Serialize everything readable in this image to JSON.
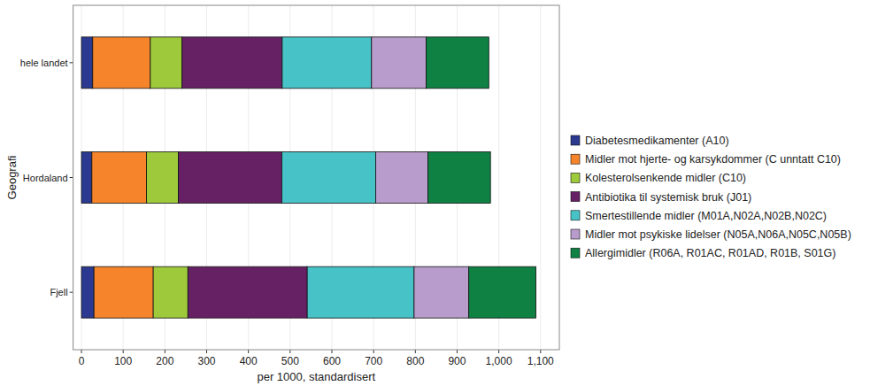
{
  "chart_data": {
    "type": "bar",
    "orientation": "horizontal",
    "stacked": true,
    "grid": true,
    "legend": "right",
    "x_label": "per 1000, standardisert",
    "y_label": "Geografi",
    "categories": [
      "hele landet",
      "Hordaland",
      "Fjell"
    ],
    "xlim": [
      -20,
      1145
    ],
    "xticks": [
      0,
      100,
      200,
      300,
      400,
      500,
      600,
      700,
      800,
      900,
      {
        "value": 1000,
        "label": "1,000"
      },
      {
        "value": 1100,
        "label": "1,100"
      }
    ],
    "series": [
      {
        "name": "Diabetesmedikamenter (A10)",
        "color": "#2b3990",
        "values": [
          27,
          25,
          30
        ]
      },
      {
        "name": "Midler mot hjerte- og karsykdommer (C unntatt C10)",
        "color": "#f5842a",
        "values": [
          138,
          131,
          142
        ]
      },
      {
        "name": "Kolesterolsenkende midler (C10)",
        "color": "#9dc93b",
        "values": [
          76,
          76,
          83
        ]
      },
      {
        "name": "Antibiotika til systemisk bruk (J01)",
        "color": "#662165",
        "values": [
          240,
          248,
          286
        ]
      },
      {
        "name": "Smertestillende midler (M01A,N02A,N02B,N02C)",
        "color": "#47c3c8",
        "values": [
          214,
          225,
          256
        ]
      },
      {
        "name": "Midler mot psykiske lidelser (N05A,N06A,N05C,N05B)",
        "color": "#b89ccb",
        "values": [
          131,
          125,
          131
        ]
      },
      {
        "name": "Allergimidler (R06A, R01AC, R01AD, R01B, S01G)",
        "color": "#0e8143",
        "values": [
          150,
          150,
          161
        ]
      }
    ]
  }
}
